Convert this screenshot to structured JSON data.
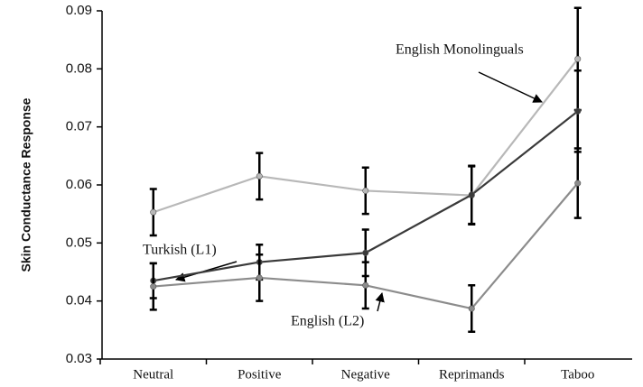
{
  "chart_data": {
    "type": "line",
    "y_label": "Skin Conductance Response",
    "categories": [
      "Neutral",
      "Positive",
      "Negative",
      "Reprimands",
      "Taboo"
    ],
    "ylim": [
      0.03,
      0.09
    ],
    "yticks": [
      0.03,
      0.04,
      0.05,
      0.06,
      0.07,
      0.08,
      0.09
    ],
    "series": [
      {
        "name": "English Monolinguals",
        "color": "#b8b8b8",
        "values": [
          0.0553,
          0.0615,
          0.059,
          0.0582,
          0.0817
        ],
        "errors": [
          0.004,
          0.004,
          0.004,
          0.005,
          0.0088
        ]
      },
      {
        "name": "Turkish (L1)",
        "color": "#3a3a3a",
        "values": [
          0.0435,
          0.0467,
          0.0483,
          0.0583,
          0.0727
        ],
        "errors": [
          0.003,
          0.003,
          0.004,
          0.005,
          0.007
        ]
      },
      {
        "name": "English (L2)",
        "color": "#8c8c8c",
        "values": [
          0.0425,
          0.044,
          0.0427,
          0.0387,
          0.0603
        ],
        "errors": [
          0.004,
          0.004,
          0.004,
          0.004,
          0.006
        ]
      }
    ]
  }
}
